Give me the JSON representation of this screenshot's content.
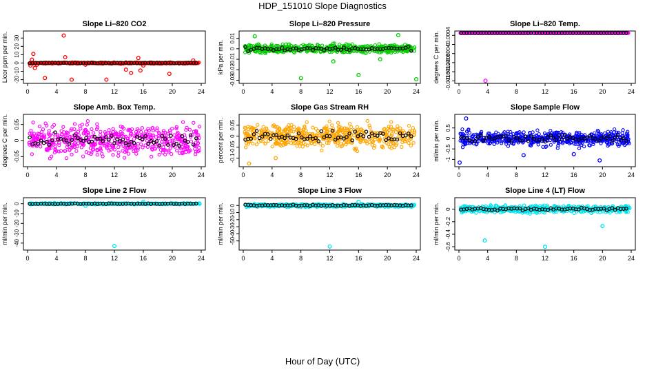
{
  "figure": {
    "title": "HDP_151010  Slope Diagnostics",
    "xlabel": "Hour of Day (UTC)"
  },
  "chart_data": [
    {
      "type": "scatter",
      "title": "Slope Li–820 CO2",
      "ylabel": "Licor ppm per min.",
      "color": "#ff0000",
      "marker": "open-circle",
      "xlim": [
        0,
        24
      ],
      "xticks": [
        0,
        4,
        8,
        12,
        16,
        20,
        24
      ],
      "ylim": [
        -22,
        36
      ],
      "yticks": [
        -20,
        -10,
        0,
        10,
        20,
        30
      ],
      "band": {
        "center": 0,
        "spread": 1.2
      },
      "outliers": [
        [
          0.4,
          -3
        ],
        [
          0.6,
          4
        ],
        [
          0.8,
          11
        ],
        [
          1.0,
          -6
        ],
        [
          1.3,
          -2
        ],
        [
          2.4,
          -18
        ],
        [
          5.0,
          33
        ],
        [
          5.2,
          7
        ],
        [
          6.1,
          -20
        ],
        [
          8.0,
          -2
        ],
        [
          10.9,
          -20
        ],
        [
          13.6,
          -8
        ],
        [
          14.3,
          -12
        ],
        [
          15.3,
          6
        ],
        [
          15.6,
          -9
        ],
        [
          16.0,
          -3
        ],
        [
          19.6,
          -13
        ],
        [
          22.9,
          3
        ]
      ],
      "black_points": 60
    },
    {
      "type": "scatter",
      "title": "Slope Li–820 Pressure",
      "ylabel": "kPa per min.",
      "color": "#00cc00",
      "marker": "open-circle",
      "xlim": [
        0,
        24
      ],
      "xticks": [
        0,
        4,
        8,
        12,
        16,
        20,
        24
      ],
      "ylim": [
        -0.031,
        0.015
      ],
      "yticks": [
        -0.03,
        -0.02,
        -0.01,
        0.0,
        0.01
      ],
      "band": {
        "center": 0.0,
        "spread": 0.006
      },
      "outliers": [
        [
          8.0,
          -0.028
        ],
        [
          16.0,
          -0.025
        ],
        [
          24.0,
          -0.029
        ],
        [
          1.6,
          0.012
        ],
        [
          21.5,
          0.013
        ],
        [
          12.5,
          -0.012
        ],
        [
          19.0,
          -0.01
        ]
      ],
      "black_points": 60
    },
    {
      "type": "scatter",
      "title": "Slope Li–820 Temp.",
      "ylabel": "degrees C per min.",
      "color": "#ff00ff",
      "marker": "open-circle",
      "xlim": [
        0,
        24
      ],
      "xticks": [
        0,
        4,
        8,
        12,
        16,
        20,
        24
      ],
      "ylim": [
        -0.00162,
        0.0005
      ],
      "yticks": [
        -0.0016,
        -0.0012,
        -0.0008,
        -0.0004,
        0.0,
        0.0004
      ],
      "band": {
        "center": 0.0005,
        "spread": 0.0
      },
      "outliers": [
        [
          3.7,
          -0.0016
        ]
      ],
      "black_points": 60
    },
    {
      "type": "scatter",
      "title": "Slope Amb. Box Temp.",
      "ylabel": "degrees C per min.",
      "color": "#ff00ff",
      "marker": "open-circle",
      "xlim": [
        0,
        24
      ],
      "xticks": [
        0,
        4,
        8,
        12,
        16,
        20,
        24
      ],
      "ylim": [
        -0.075,
        0.075
      ],
      "yticks": [
        -0.05,
        0.0,
        0.05
      ],
      "band": {
        "center": 0.0,
        "spread": 0.07
      },
      "outliers": [],
      "black_points": 60
    },
    {
      "type": "scatter",
      "title": "Slope Gas Stream RH",
      "ylabel": "percent per min.",
      "color": "#ffa500",
      "marker": "open-circle",
      "xlim": [
        0,
        24
      ],
      "xticks": [
        0,
        4,
        8,
        12,
        16,
        20,
        24
      ],
      "ylim": [
        -0.13,
        0.09
      ],
      "yticks": [
        -0.1,
        -0.05,
        0.0,
        0.05
      ],
      "band": {
        "center": 0.0,
        "spread": 0.08
      },
      "outliers": [
        [
          0.8,
          -0.125
        ],
        [
          4.5,
          -0.1
        ]
      ],
      "black_points": 60
    },
    {
      "type": "scatter",
      "title": "Slope Sample Flow",
      "ylabel": "ml/min per min.",
      "color": "#0000ff",
      "marker": "open-circle",
      "xlim": [
        0,
        24
      ],
      "xticks": [
        0,
        4,
        8,
        12,
        16,
        20,
        24
      ],
      "ylim": [
        -1.25,
        1.05
      ],
      "yticks": [
        -1.0,
        -0.5,
        0.0,
        0.5
      ],
      "band": {
        "center": 0.0,
        "spread": 0.5
      },
      "outliers": [
        [
          0.1,
          -1.15
        ],
        [
          1.0,
          0.95
        ],
        [
          9.0,
          -0.8
        ],
        [
          19.6,
          -1.05
        ],
        [
          16.0,
          -0.75
        ]
      ],
      "black_points": 60
    },
    {
      "type": "scatter",
      "title": "Slope Line 2 Flow",
      "ylabel": "ml/min per min.",
      "color": "#00e5ee",
      "marker": "open-circle",
      "xlim": [
        0,
        24
      ],
      "xticks": [
        0,
        4,
        8,
        12,
        16,
        20,
        24
      ],
      "ylim": [
        -45,
        4
      ],
      "yticks": [
        -40,
        -30,
        -20,
        -10,
        0
      ],
      "band": {
        "center": 0.0,
        "spread": 1.0
      },
      "outliers": [
        [
          12.0,
          -43
        ],
        [
          16.0,
          2
        ],
        [
          8.0,
          -2
        ]
      ],
      "black_points": 60
    },
    {
      "type": "scatter",
      "title": "Slope Line 3 Flow",
      "ylabel": "ml/min per min.",
      "color": "#00e5ee",
      "marker": "open-circle",
      "xlim": [
        0,
        24
      ],
      "xticks": [
        0,
        4,
        8,
        12,
        16,
        20,
        24
      ],
      "ylim": [
        -60,
        8
      ],
      "yticks": [
        -50,
        -40,
        -30,
        -20,
        -10,
        0
      ],
      "band": {
        "center": 0.0,
        "spread": 3.0
      },
      "outliers": [
        [
          12.0,
          -58
        ],
        [
          16.0,
          5
        ]
      ],
      "black_points": 60
    },
    {
      "type": "scatter",
      "title": "Slope Line 4 (LT) Flow",
      "ylabel": "ml/min per min.",
      "color": "#00e5ee",
      "marker": "open-circle",
      "xlim": [
        0,
        24
      ],
      "xticks": [
        0,
        4,
        8,
        12,
        16,
        20,
        24
      ],
      "ylim": [
        -0.62,
        0.15
      ],
      "yticks": [
        -0.6,
        -0.4,
        -0.2,
        0.0
      ],
      "band": {
        "center": 0.0,
        "spread": 0.08
      },
      "outliers": [
        [
          3.6,
          -0.5
        ],
        [
          12.0,
          -0.6
        ],
        [
          20.0,
          -0.27
        ]
      ],
      "black_points": 60
    }
  ]
}
